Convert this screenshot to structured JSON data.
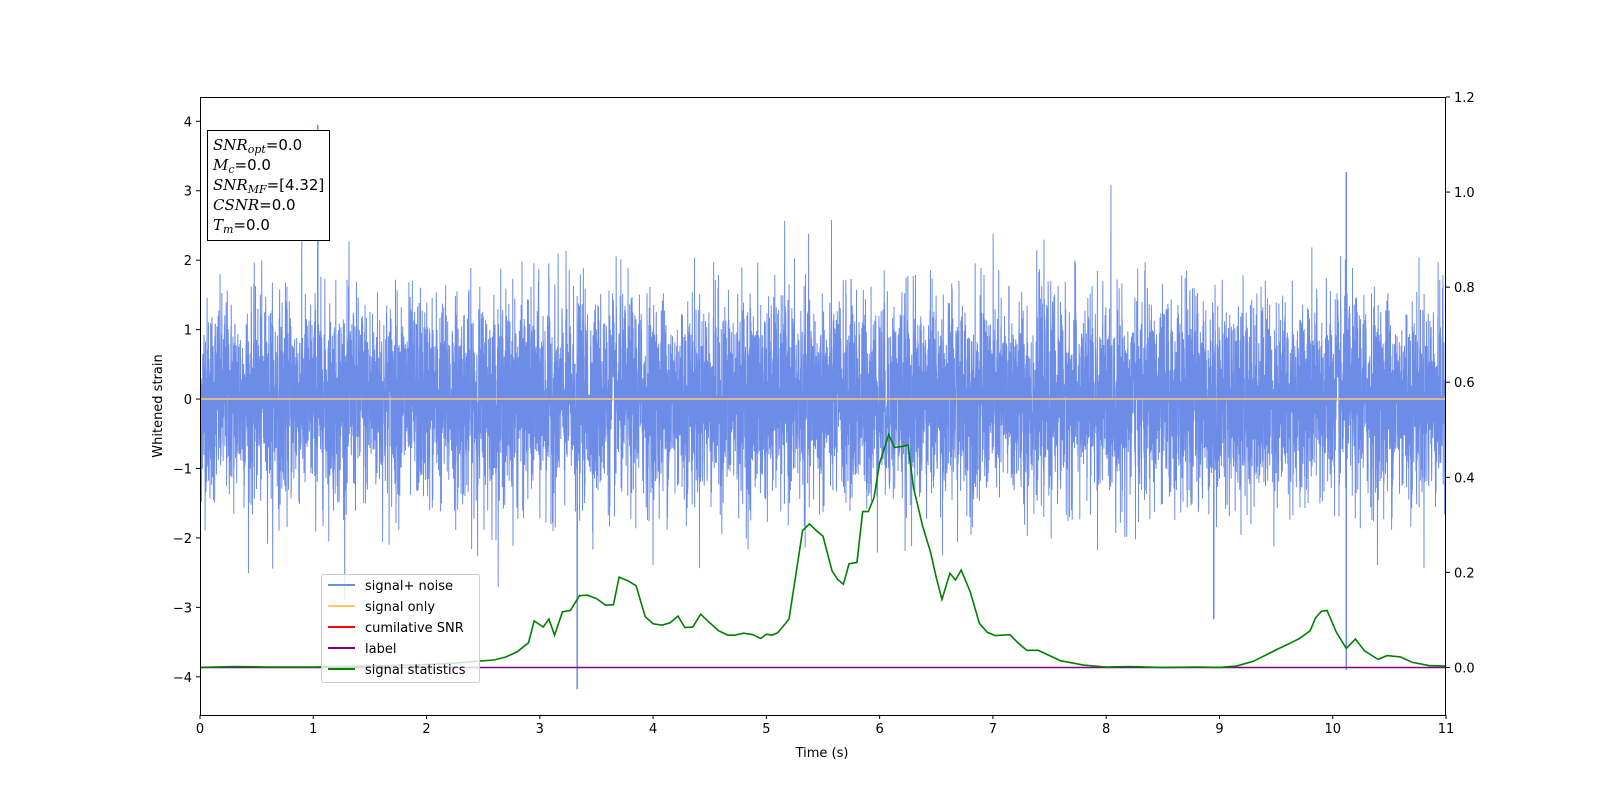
{
  "chart_data": {
    "type": "line",
    "xlabel": "Time (s)",
    "ylabel": "Whitened strain",
    "xlim": [
      0,
      11
    ],
    "ylim_left": [
      -4.55,
      4.35
    ],
    "ylim_right": [
      -0.1,
      1.2
    ],
    "x_ticks": [
      "0",
      "1",
      "2",
      "3",
      "4",
      "5",
      "6",
      "7",
      "8",
      "9",
      "10",
      "11"
    ],
    "y_ticks_left": [
      "4",
      "3",
      "2",
      "1",
      "0",
      "−1",
      "−2",
      "−3",
      "−4"
    ],
    "y_ticks_left_values": [
      4,
      3,
      2,
      1,
      0,
      -1,
      -2,
      -3,
      -4
    ],
    "y_ticks_right": [
      "1.2",
      "1.0",
      "0.8",
      "0.6",
      "0.4",
      "0.2",
      "0.0"
    ],
    "y_ticks_right_values": [
      1.2,
      1.0,
      0.8,
      0.6,
      0.4,
      0.2,
      0.0
    ],
    "legend_position": "lower-left",
    "series": [
      {
        "name": "signal+ noise",
        "color": "#6d8ce8",
        "axis": "left",
        "kind": "noise",
        "noise_sigma": 0.72,
        "spikes": [
          {
            "x": 1.04,
            "y": 3.95
          },
          {
            "x": 3.33,
            "y": -4.18
          },
          {
            "x": 10.12,
            "y": 3.27
          },
          {
            "x": 10.12,
            "y": -3.9
          },
          {
            "x": 8.95,
            "y": -3.17
          }
        ]
      },
      {
        "name": "signal only",
        "color": "#ffc96b",
        "axis": "left",
        "x": [
          0,
          11
        ],
        "y": [
          0,
          0
        ]
      },
      {
        "name": "cumilative SNR",
        "color": "#ff0000",
        "axis": "right",
        "x": [],
        "y": []
      },
      {
        "name": "label",
        "color": "#800080",
        "axis": "right",
        "x": [
          0,
          11
        ],
        "y": [
          0,
          0
        ]
      },
      {
        "name": "signal statistics",
        "color": "#008000",
        "axis": "right",
        "x": [
          0,
          0.3,
          0.6,
          1.0,
          1.5,
          2.0,
          2.3,
          2.6,
          2.7,
          2.8,
          2.9,
          2.95,
          3.03,
          3.08,
          3.13,
          3.2,
          3.27,
          3.35,
          3.42,
          3.5,
          3.58,
          3.65,
          3.7,
          3.78,
          3.85,
          3.93,
          4.0,
          4.08,
          4.15,
          4.22,
          4.28,
          4.35,
          4.42,
          4.5,
          4.58,
          4.66,
          4.72,
          4.8,
          4.88,
          4.95,
          5.0,
          5.05,
          5.1,
          5.15,
          5.2,
          5.25,
          5.32,
          5.38,
          5.45,
          5.5,
          5.58,
          5.63,
          5.68,
          5.73,
          5.8,
          5.85,
          5.9,
          5.95,
          6.0,
          6.08,
          6.13,
          6.2,
          6.25,
          6.3,
          6.38,
          6.45,
          6.5,
          6.55,
          6.62,
          6.67,
          6.72,
          6.8,
          6.88,
          6.95,
          7.02,
          7.08,
          7.15,
          7.22,
          7.3,
          7.4,
          7.6,
          7.8,
          8.0,
          8.2,
          8.5,
          8.8,
          9.0,
          9.15,
          9.3,
          9.5,
          9.7,
          9.8,
          9.85,
          9.9,
          9.95,
          10.03,
          10.12,
          10.2,
          10.28,
          10.4,
          10.48,
          10.6,
          10.7,
          10.85,
          11.0
        ],
        "y": [
          0.0,
          0.002,
          0.001,
          0.001,
          0.003,
          0.006,
          0.01,
          0.016,
          0.022,
          0.033,
          0.052,
          0.098,
          0.085,
          0.102,
          0.068,
          0.117,
          0.12,
          0.151,
          0.152,
          0.145,
          0.131,
          0.132,
          0.19,
          0.182,
          0.172,
          0.107,
          0.092,
          0.089,
          0.094,
          0.108,
          0.084,
          0.085,
          0.112,
          0.094,
          0.077,
          0.068,
          0.068,
          0.072,
          0.069,
          0.061,
          0.07,
          0.068,
          0.073,
          0.087,
          0.102,
          0.179,
          0.288,
          0.302,
          0.286,
          0.276,
          0.203,
          0.185,
          0.175,
          0.218,
          0.221,
          0.328,
          0.328,
          0.357,
          0.43,
          0.49,
          0.463,
          0.465,
          0.468,
          0.377,
          0.297,
          0.242,
          0.189,
          0.143,
          0.198,
          0.184,
          0.205,
          0.159,
          0.093,
          0.074,
          0.067,
          0.068,
          0.069,
          0.052,
          0.036,
          0.036,
          0.014,
          0.005,
          0.001,
          0.002,
          0.0,
          0.001,
          0.0,
          0.003,
          0.013,
          0.037,
          0.06,
          0.077,
          0.105,
          0.118,
          0.12,
          0.075,
          0.04,
          0.06,
          0.035,
          0.017,
          0.025,
          0.022,
          0.011,
          0.004,
          0.003
        ]
      }
    ]
  },
  "infobox": {
    "snr_opt_label": "SNR",
    "snr_opt_sub": "opt",
    "snr_opt_value": "=0.0",
    "mc_label": "M",
    "mc_sub": "c",
    "mc_value": "=0.0",
    "snr_mf_label": "SNR",
    "snr_mf_sub": "MF",
    "snr_mf_value": "=[4.32]",
    "csnr_label": "CSNR",
    "csnr_value": "=0.0",
    "tm_label": "T",
    "tm_sub": "m",
    "tm_value": "=0.0"
  }
}
